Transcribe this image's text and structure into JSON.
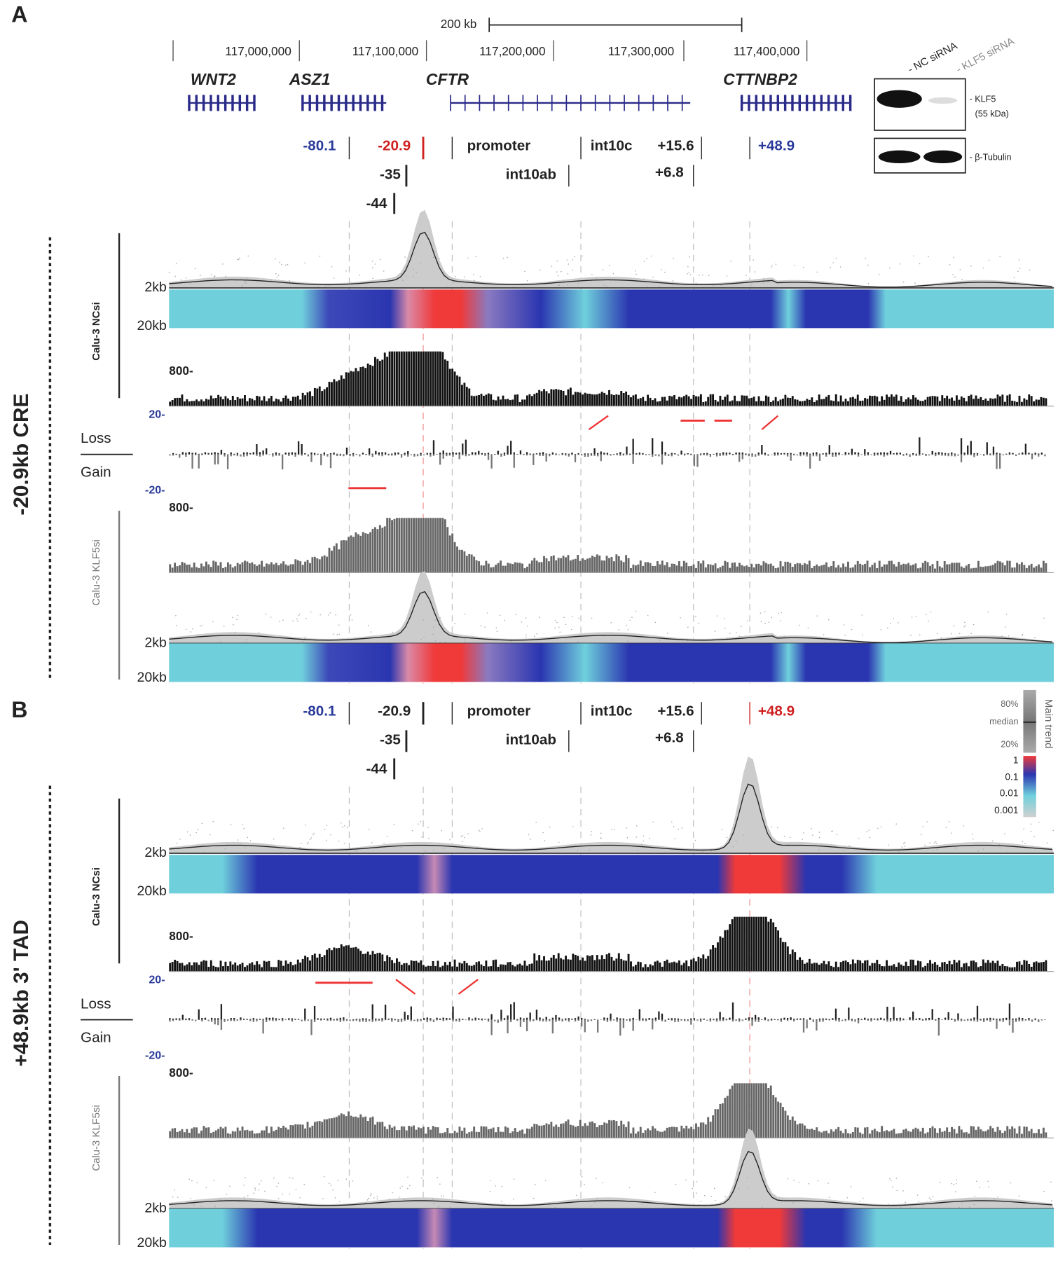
{
  "panels": [
    {
      "label": "A",
      "side_label": "-20.9kb CRE"
    },
    {
      "label": "B",
      "side_label": "+48.9kb 3' TAD"
    }
  ],
  "scale_bar": "200 kb",
  "coordinates": [
    "117,000,000",
    "117,100,000",
    "117,200,000",
    "117,300,000",
    "117,400,000"
  ],
  "genes": [
    "WNT2",
    "ASZ1",
    "CFTR",
    "CTTNBP2"
  ],
  "elements": [
    "-80.1",
    "-20.9",
    "-35",
    "-44",
    "promoter",
    "int10ab",
    "int10c",
    "+15.6",
    "+6.8",
    "+48.9"
  ],
  "tracks": {
    "nc": "Calu-3 NCsi",
    "klf5": "Calu-3 KLF5si",
    "near": "2kb",
    "far": "20kb",
    "cov_max": "800-",
    "diff_max": "20-",
    "diff_min": "-20-",
    "loss": "Loss",
    "gain": "Gain"
  },
  "western": {
    "lanes": [
      "- NC siRNA",
      "- KLF5 siRNA"
    ],
    "bands": [
      "- KLF5",
      "(55 kDa)",
      "- β-Tubulin"
    ]
  },
  "legend": {
    "title": "Main trend",
    "trend": [
      "80%",
      "median",
      "20%"
    ],
    "scale": [
      "1",
      "0.1",
      "0.01",
      "0.001"
    ]
  }
}
